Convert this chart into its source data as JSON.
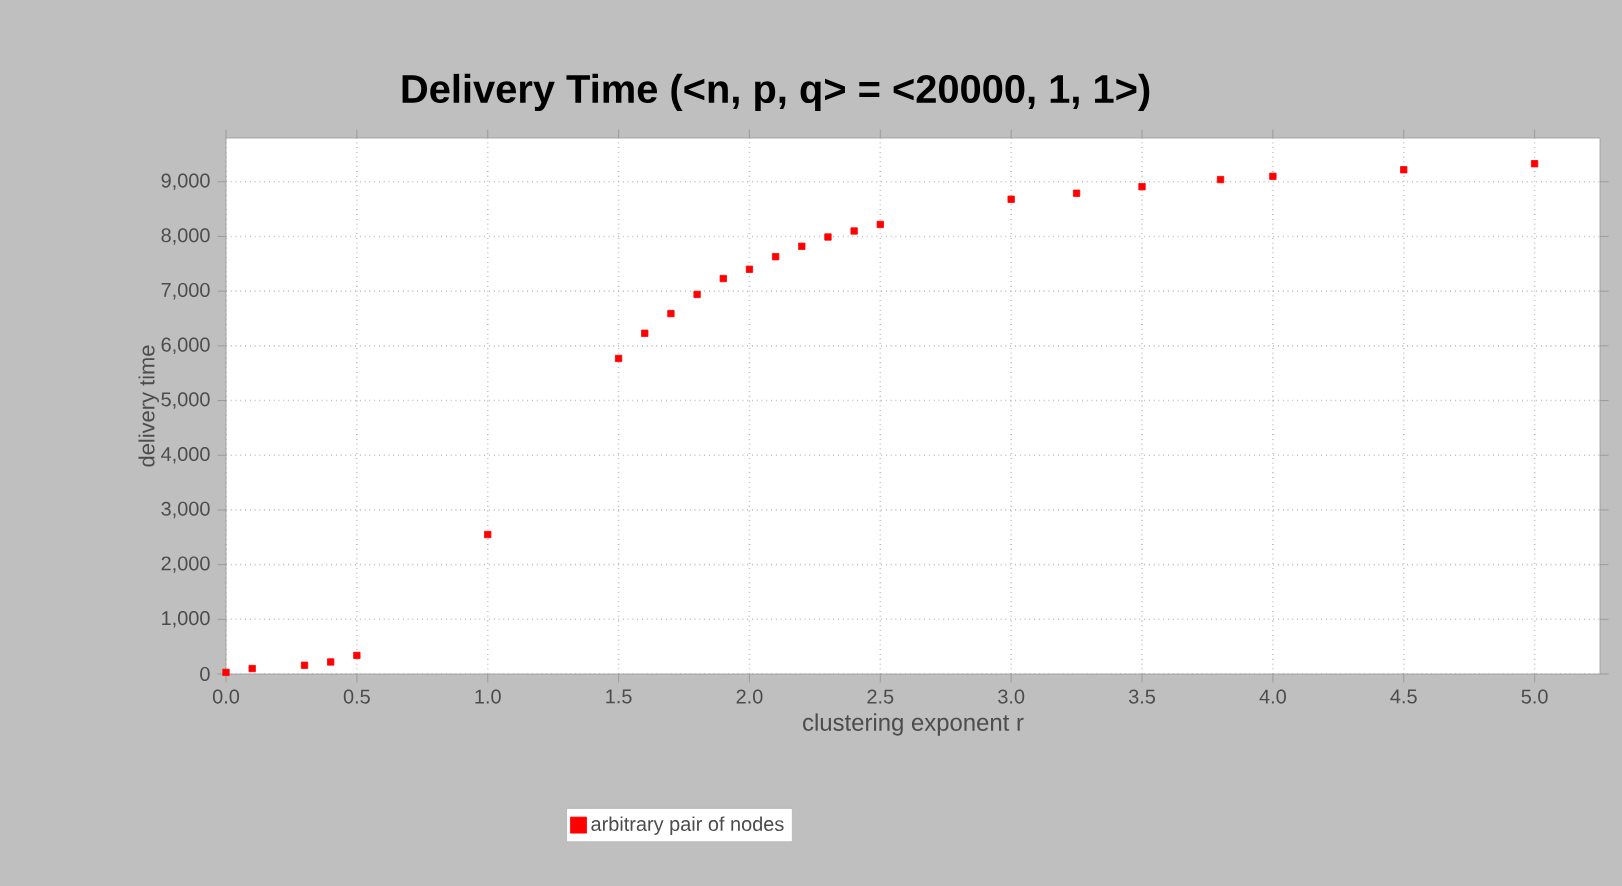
{
  "chart_data": {
    "type": "scatter",
    "title": "Delivery Time (<n, p, q> = <20000, 1, 1>)",
    "xlabel": "clustering exponent r",
    "ylabel": "delivery time",
    "x": [
      0,
      0.1,
      0.3,
      0.4,
      0.5,
      1.0,
      1.5,
      1.6,
      1.7,
      1.8,
      1.9,
      2.0,
      2.1,
      2.2,
      2.3,
      2.4,
      2.5,
      3.0,
      3.25,
      3.5,
      3.8,
      4.0,
      4.5,
      5.0
    ],
    "series": [
      {
        "name": "arbitrary pair of nodes",
        "color": "#ff0000",
        "values": [
          30,
          100,
          160,
          220,
          340,
          2550,
          5770,
          6230,
          6590,
          6940,
          7230,
          7400,
          7630,
          7820,
          7990,
          8100,
          8220,
          8680,
          8790,
          8910,
          9040,
          9100,
          9220,
          9330
        ]
      }
    ],
    "xlim": [
      0,
      5.25
    ],
    "ylim": [
      0,
      9800
    ],
    "xticks": [
      {
        "value": 0,
        "label": "0.0"
      },
      {
        "value": 0.5,
        "label": "0.5"
      },
      {
        "value": 1,
        "label": "1.0"
      },
      {
        "value": 1.5,
        "label": "1.5"
      },
      {
        "value": 2,
        "label": "2.0"
      },
      {
        "value": 2.5,
        "label": "2.5"
      },
      {
        "value": 3,
        "label": "3.0"
      },
      {
        "value": 3.5,
        "label": "3.5"
      },
      {
        "value": 4,
        "label": "4.0"
      },
      {
        "value": 4.5,
        "label": "4.5"
      },
      {
        "value": 5,
        "label": "5.0"
      }
    ],
    "yticks": [
      0,
      {
        "value": 1000,
        "label": "1,000"
      },
      {
        "value": 2000,
        "label": "2,000"
      },
      {
        "value": 3000,
        "label": "3,000"
      },
      {
        "value": 4000,
        "label": "4,000"
      },
      {
        "value": 5000,
        "label": "5,000"
      },
      {
        "value": 6000,
        "label": "6,000"
      },
      {
        "value": 7000,
        "label": "7,000"
      },
      {
        "value": 8000,
        "label": "8,000"
      },
      {
        "value": 9000,
        "label": "9,000"
      }
    ],
    "grid": true,
    "legend": "bottom",
    "marker": "square"
  }
}
